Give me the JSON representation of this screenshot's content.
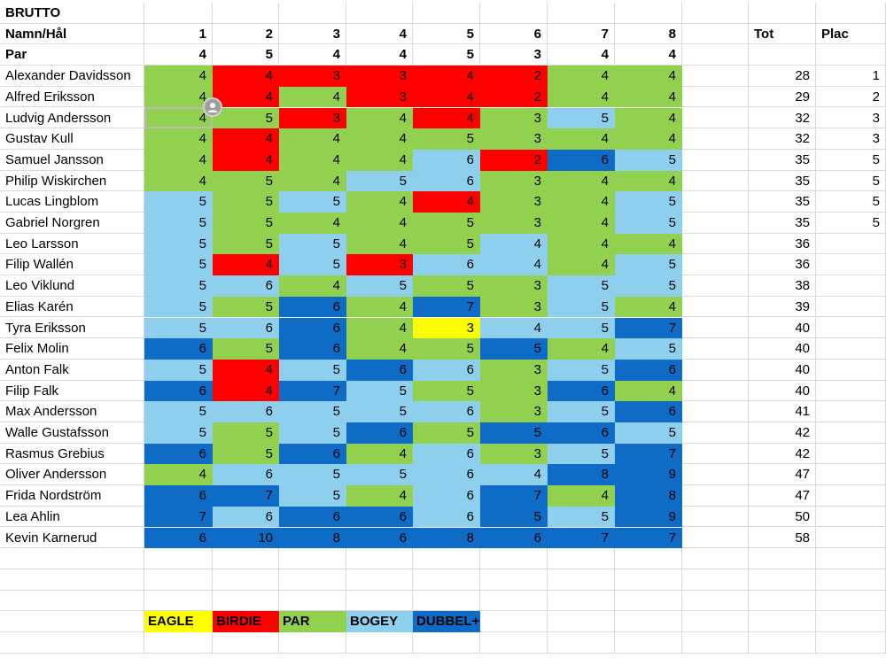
{
  "sheet": {
    "title": "BRUTTO",
    "header_label": "Namn/Hål",
    "par_label": "Par",
    "holes": [
      "1",
      "2",
      "3",
      "4",
      "5",
      "6",
      "7",
      "8"
    ],
    "par": [
      "4",
      "5",
      "4",
      "4",
      "5",
      "3",
      "4",
      "4"
    ],
    "tot_label": "Tot",
    "plac_label": "Plac",
    "players": [
      {
        "name": "Alexander Davidsson",
        "scores": [
          "4",
          "4",
          "3",
          "3",
          "4",
          "2",
          "4",
          "4"
        ],
        "tot": "28",
        "plac": "1"
      },
      {
        "name": "Alfred Eriksson",
        "scores": [
          "4",
          "4",
          "4",
          "3",
          "4",
          "2",
          "4",
          "4"
        ],
        "tot": "29",
        "plac": "2"
      },
      {
        "name": "Ludvig Andersson",
        "scores": [
          "4",
          "5",
          "3",
          "4",
          "4",
          "3",
          "5",
          "4"
        ],
        "tot": "32",
        "plac": "3"
      },
      {
        "name": "Gustav Kull",
        "scores": [
          "4",
          "4",
          "4",
          "4",
          "5",
          "3",
          "4",
          "4"
        ],
        "tot": "32",
        "plac": "3"
      },
      {
        "name": "Samuel Jansson",
        "scores": [
          "4",
          "4",
          "4",
          "4",
          "6",
          "2",
          "6",
          "5"
        ],
        "tot": "35",
        "plac": "5"
      },
      {
        "name": "Philip Wiskirchen",
        "scores": [
          "4",
          "5",
          "4",
          "5",
          "6",
          "3",
          "4",
          "4"
        ],
        "tot": "35",
        "plac": "5"
      },
      {
        "name": "Lucas Lingblom",
        "scores": [
          "5",
          "5",
          "5",
          "4",
          "4",
          "3",
          "4",
          "5"
        ],
        "tot": "35",
        "plac": "5"
      },
      {
        "name": "Gabriel Norgren",
        "scores": [
          "5",
          "5",
          "4",
          "4",
          "5",
          "3",
          "4",
          "5"
        ],
        "tot": "35",
        "plac": "5"
      },
      {
        "name": "Leo Larsson",
        "scores": [
          "5",
          "5",
          "5",
          "4",
          "5",
          "4",
          "4",
          "4"
        ],
        "tot": "36",
        "plac": ""
      },
      {
        "name": "Filip Wallén",
        "scores": [
          "5",
          "4",
          "5",
          "3",
          "6",
          "4",
          "4",
          "5"
        ],
        "tot": "36",
        "plac": ""
      },
      {
        "name": "Leo Viklund",
        "scores": [
          "5",
          "6",
          "4",
          "5",
          "5",
          "3",
          "5",
          "5"
        ],
        "tot": "38",
        "plac": ""
      },
      {
        "name": "Elias Karén",
        "scores": [
          "5",
          "5",
          "6",
          "4",
          "7",
          "3",
          "5",
          "4"
        ],
        "tot": "39",
        "plac": ""
      },
      {
        "name": "Tyra Eriksson",
        "scores": [
          "5",
          "6",
          "6",
          "4",
          "3",
          "4",
          "5",
          "7"
        ],
        "tot": "40",
        "plac": ""
      },
      {
        "name": "Felix Molin",
        "scores": [
          "6",
          "5",
          "6",
          "4",
          "5",
          "5",
          "4",
          "5"
        ],
        "tot": "40",
        "plac": ""
      },
      {
        "name": "Anton Falk",
        "scores": [
          "5",
          "4",
          "5",
          "6",
          "6",
          "3",
          "5",
          "6"
        ],
        "tot": "40",
        "plac": ""
      },
      {
        "name": "Filip Falk",
        "scores": [
          "6",
          "4",
          "7",
          "5",
          "5",
          "3",
          "6",
          "4"
        ],
        "tot": "40",
        "plac": ""
      },
      {
        "name": "Max Andersson",
        "scores": [
          "5",
          "6",
          "5",
          "5",
          "6",
          "3",
          "5",
          "6"
        ],
        "tot": "41",
        "plac": ""
      },
      {
        "name": "Walle Gustafsson",
        "scores": [
          "5",
          "5",
          "5",
          "6",
          "5",
          "5",
          "6",
          "5"
        ],
        "tot": "42",
        "plac": ""
      },
      {
        "name": "Rasmus Grebius",
        "scores": [
          "6",
          "5",
          "6",
          "4",
          "6",
          "3",
          "5",
          "7"
        ],
        "tot": "42",
        "plac": ""
      },
      {
        "name": "Oliver Andersson",
        "scores": [
          "4",
          "6",
          "5",
          "5",
          "6",
          "4",
          "8",
          "9"
        ],
        "tot": "47",
        "plac": ""
      },
      {
        "name": "Frida Nordström",
        "scores": [
          "6",
          "7",
          "5",
          "4",
          "6",
          "7",
          "4",
          "8"
        ],
        "tot": "47",
        "plac": ""
      },
      {
        "name": "Lea Ahlin",
        "scores": [
          "7",
          "6",
          "6",
          "6",
          "6",
          "5",
          "5",
          "9"
        ],
        "tot": "50",
        "plac": ""
      },
      {
        "name": "Kevin Karnerud",
        "scores": [
          "6",
          "10",
          "8",
          "6",
          "8",
          "6",
          "7",
          "7"
        ],
        "tot": "58",
        "plac": ""
      }
    ],
    "legend": [
      {
        "label": "EAGLE",
        "color": "#ffff00"
      },
      {
        "label": "BIRDIE",
        "color": "#ff0000"
      },
      {
        "label": "PAR",
        "color": "#92d050"
      },
      {
        "label": "BOGEY",
        "color": "#8ecfee"
      },
      {
        "label": "DUBBEL+",
        "color": "#0e6bc6"
      }
    ],
    "colors": {
      "eagle": "#ffff00",
      "birdie": "#ff0000",
      "par": "#92d050",
      "bogey": "#8ecfee",
      "double": "#0e6bc6",
      "grid": "#d9d9d9"
    },
    "selected_cell": "Ludvig Andersson / hole 1",
    "avatar_icon": "user-avatar-icon"
  }
}
